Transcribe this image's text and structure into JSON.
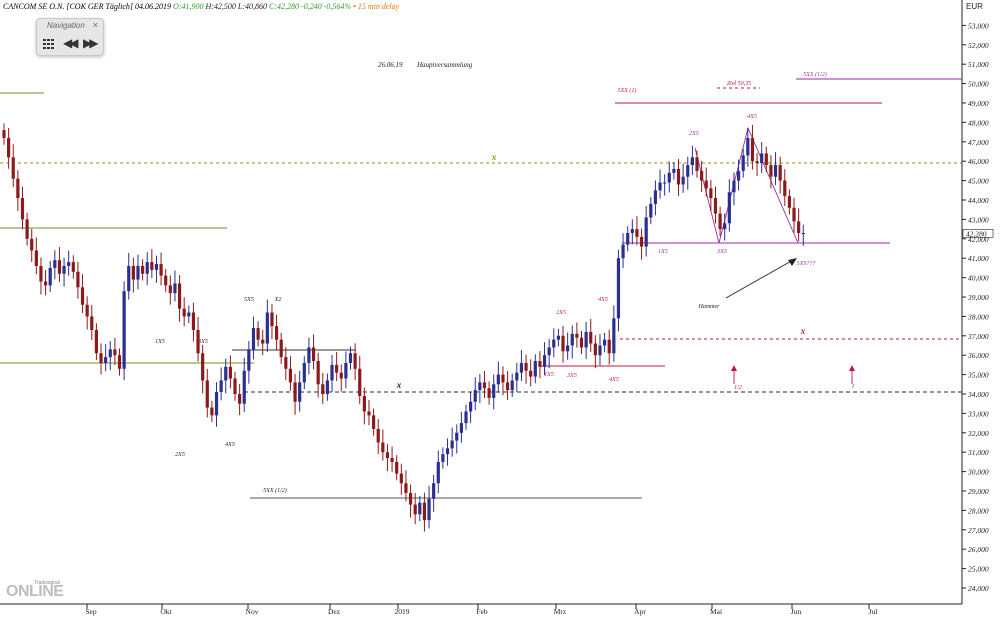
{
  "header": {
    "instrument": "CANCOM SE O.N. [COK GER Täglich]",
    "date": "04.06.2019",
    "open": "O:41,900",
    "high": "H:42,500",
    "low": "L:40,860",
    "change": "C:42,280 -0,240 -0,564%",
    "delay": "15 min delay"
  },
  "nav": {
    "title": "Navigation",
    "close": "×"
  },
  "logo": {
    "tag": "Tradesignal",
    "text": "ONLINE"
  },
  "colors": {
    "up": "#2b2f8f",
    "down": "#8c1a1a",
    "green_line": "#6f8f1f",
    "olive": "#a08a00",
    "purple": "#9a2aa6",
    "red_line": "#b81a3a",
    "pink": "#c0307a"
  },
  "chart_data": {
    "type": "candlestick",
    "currency": "EUR",
    "y_ticks": [
      "24,000",
      "25,000",
      "26,000",
      "27,000",
      "28,000",
      "29,000",
      "30,000",
      "31,000",
      "32,000",
      "33,000",
      "34,000",
      "35,000",
      "36,000",
      "37,000",
      "38,000",
      "39,000",
      "40,000",
      "41,000",
      "42,000",
      "43,000",
      "44,000",
      "45,000",
      "46,000",
      "47,000",
      "48,000",
      "49,000",
      "50,000",
      "51,000",
      "52,000",
      "53,000"
    ],
    "last_price": "42,280",
    "x_labels": [
      "Sep",
      "Okt",
      "Nov",
      "Dez",
      "2019",
      "Feb",
      "Mrz",
      "Apr",
      "Mai",
      "Jun",
      "Jul"
    ],
    "closes": [
      47.2,
      46.2,
      45.1,
      44.1,
      43.0,
      42.0,
      41.4,
      40.6,
      39.8,
      39.6,
      40.5,
      40.9,
      40.2,
      40.6,
      40.8,
      40.3,
      39.5,
      38.6,
      38.0,
      37.3,
      36.1,
      35.6,
      35.9,
      36.3,
      36.0,
      35.3,
      39.3,
      40.6,
      39.9,
      40.6,
      40.2,
      40.8,
      40.4,
      40.7,
      40.1,
      39.6,
      39.2,
      39.7,
      38.4,
      38.0,
      38.2,
      37.3,
      36.1,
      34.7,
      33.3,
      32.9,
      34.1,
      34.7,
      35.4,
      34.8,
      34.0,
      33.5,
      35.2,
      36.3,
      37.4,
      36.8,
      36.6,
      38.2,
      37.5,
      36.8,
      35.9,
      35.3,
      34.6,
      33.6,
      34.6,
      35.6,
      36.4,
      35.7,
      34.5,
      34.0,
      34.7,
      35.5,
      35.1,
      34.8,
      35.6,
      36.1,
      35.3,
      33.9,
      33.1,
      32.9,
      32.2,
      31.5,
      31.0,
      30.7,
      30.5,
      29.9,
      29.4,
      28.9,
      28.3,
      27.8,
      28.4,
      27.5,
      28.6,
      29.4,
      30.5,
      30.9,
      31.2,
      31.6,
      32.0,
      32.5,
      33.1,
      33.6,
      34.2,
      34.6,
      34.3,
      33.8,
      34.5,
      35.0,
      34.6,
      34.2,
      34.7,
      35.1,
      35.6,
      35.2,
      34.9,
      35.7,
      35.4,
      36.0,
      36.4,
      36.8,
      37.0,
      36.2,
      36.5,
      37.1,
      36.9,
      36.4,
      37.2,
      36.6,
      36.0,
      36.5,
      36.8,
      36.1,
      37.9,
      41.0,
      41.7,
      42.3,
      42.5,
      42.1,
      41.6,
      43.1,
      43.8,
      44.5,
      44.9,
      44.9,
      45.4,
      45.6,
      44.8,
      45.2,
      45.8,
      46.2,
      45.5,
      45.0,
      44.6,
      44.1,
      43.3,
      42.5,
      42.8,
      44.4,
      45.0,
      45.5,
      46.3,
      47.2,
      46.0,
      45.9,
      46.4,
      45.8,
      45.2,
      45.8,
      45.0,
      44.2,
      43.6,
      42.9,
      42.3,
      42.3
    ],
    "annotations": {
      "title_note_date": "26.06.19",
      "title_note_text": "Hauptversammlung",
      "labels": [
        "1X5",
        "2X5",
        "3X5",
        "4X5",
        "5X5",
        "X2",
        "1X5",
        "3X5",
        "4X5",
        "2X5",
        "4X5",
        "1X5",
        "3X5",
        "5XX (1/2)",
        "x",
        "x",
        "x",
        "Hammer",
        "5XX (1)",
        "Ziel 50,35",
        "5XX (1/2)",
        "2X5",
        "4X5",
        "1X5",
        "3X5",
        "5X5???",
        "1/2",
        "1"
      ],
      "small": [
        "1/2",
        "1"
      ]
    }
  }
}
